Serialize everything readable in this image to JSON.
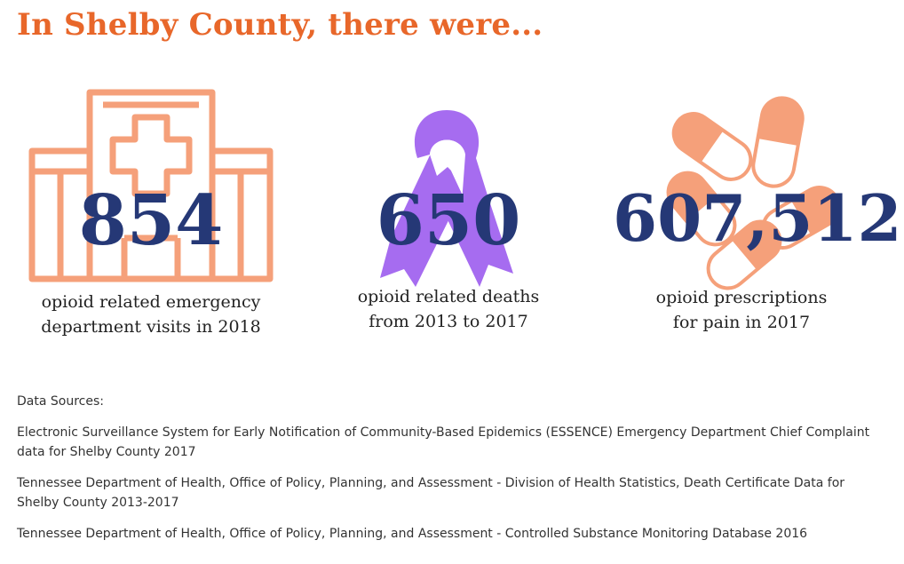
{
  "title": "In Shelby County, there were...",
  "colors": {
    "title": "#e8672a",
    "number": "#253876",
    "hospital_icon": "#f5a07a",
    "ribbon_icon": "#a66cf0",
    "pills_icon": "#f5a07a"
  },
  "stats": [
    {
      "icon": "hospital-icon",
      "value": "854",
      "caption_line1": "opioid related emergency",
      "caption_line2": "department visits in 2018"
    },
    {
      "icon": "awareness-ribbon-icon",
      "value": "650",
      "caption_line1": "opioid related deaths",
      "caption_line2": "from 2013 to 2017"
    },
    {
      "icon": "pills-icon",
      "value": "607,512",
      "caption_line1": "opioid prescriptions",
      "caption_line2": "for pain in 2017"
    }
  ],
  "sources": {
    "heading": "Data Sources:",
    "items": [
      "Electronic Surveillance System for Early Notification of Community-Based Epidemics (ESSENCE) Emergency Department Chief Complaint data for Shelby County 2017",
      "Tennessee Department of Health, Office of Policy, Planning, and Assessment - Division of Health Statistics, Death Certificate Data for Shelby County 2013-2017",
      "Tennessee Department of Health, Office of Policy, Planning, and Assessment - Controlled Substance Monitoring Database 2016"
    ]
  }
}
